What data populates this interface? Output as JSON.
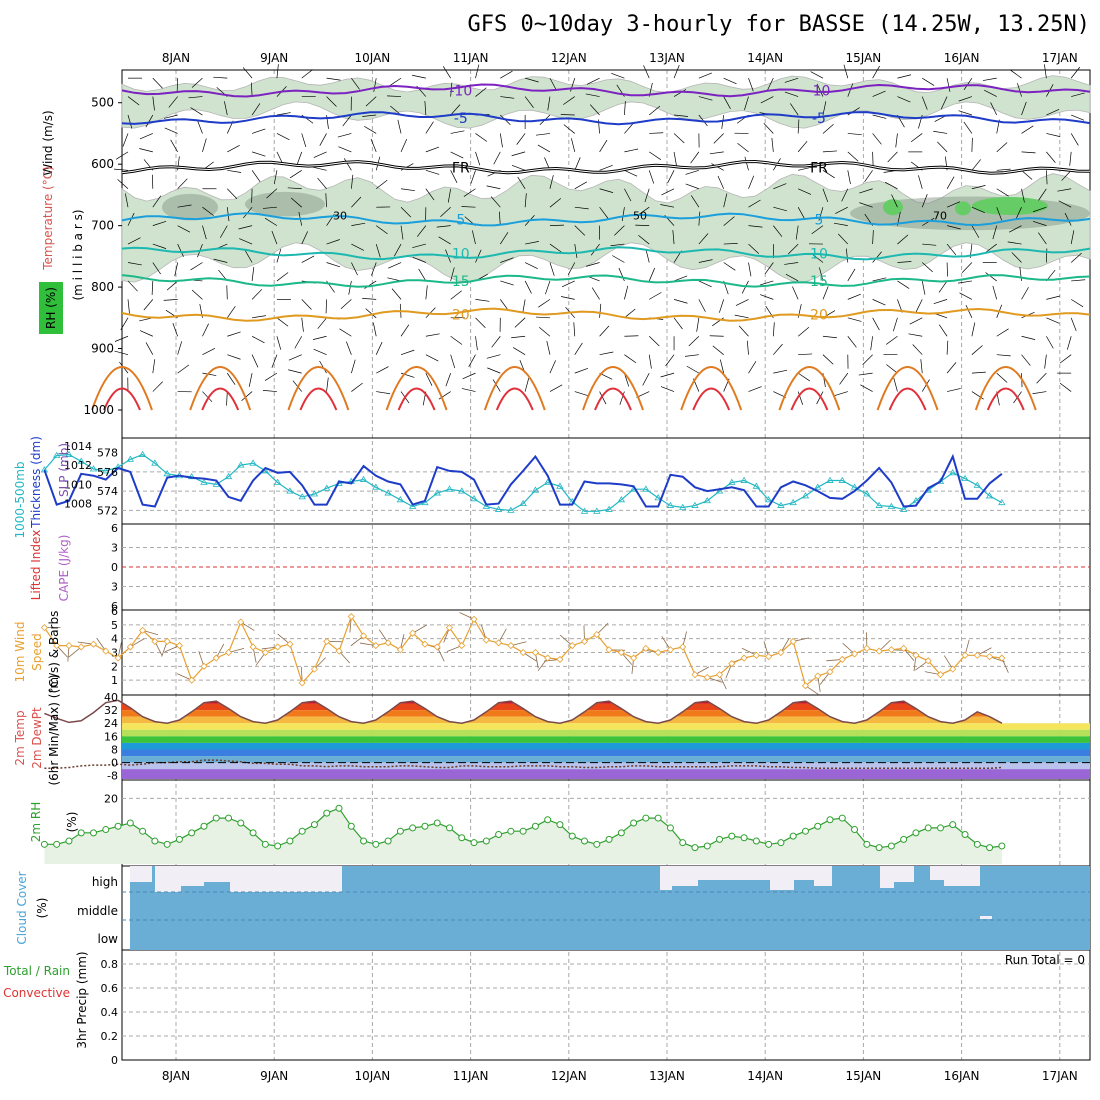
{
  "title": "GFS 0~10day 3-hourly for BASSE (14.25W, 13.25N)",
  "dates": [
    "8JAN",
    "9JAN",
    "10JAN",
    "11JAN",
    "12JAN",
    "13JAN",
    "14JAN",
    "15JAN",
    "16JAN",
    "17JAN"
  ],
  "colors": {
    "wind_barb": "#000000",
    "rh_shade": "#cfe3cf",
    "rh_dark": "#7f8f7f",
    "rh_green": "#66cc66",
    "thickness": "#1e3cc8",
    "slp": "#22b7c3",
    "lifted_index": "#dd3333",
    "wind_speed": "#e8a030",
    "cloud": "#6aaed6",
    "rh2m": "#2fa02f",
    "rh2m_fill": "#e7f2e4"
  },
  "panels": {
    "upper_air": {
      "ylabels": [
        "Wind (m/s)",
        "Temperature (°C)",
        "(m i l l i b a r s)",
        "RH (%)"
      ],
      "yticks": [
        "500",
        "600",
        "700",
        "800",
        "900",
        "1000"
      ]
    },
    "thickness_slp": {
      "ylabels": [
        "1000-500mb",
        "Thickness (dm)",
        "SLP (mb)"
      ],
      "left_ticks": [
        "578",
        "576",
        "574",
        "572"
      ],
      "right_ticks": [
        "1014",
        "1012",
        "1010",
        "1008"
      ]
    },
    "stability": {
      "ylabels": [
        "Lifted Index",
        "CAPE (J/kg)"
      ],
      "yticks": [
        "6",
        "3",
        "0",
        "3",
        "6"
      ]
    },
    "wind10m": {
      "ylabels": [
        "10m Wind",
        "Speed",
        "(m/s) & Barbs"
      ],
      "yticks": [
        "6",
        "5",
        "4",
        "3",
        "2",
        "1"
      ]
    },
    "temp2m": {
      "ylabels": [
        "2m Temp",
        "2m DewPt",
        "(6hr Min/Max) (°C)"
      ],
      "yticks": [
        "40",
        "32",
        "24",
        "16",
        "8",
        "0",
        "-8"
      ]
    },
    "rh2m": {
      "ylabels": [
        "2m RH",
        "(%)"
      ],
      "yticks": [
        "20"
      ]
    },
    "cloud": {
      "ylabels": [
        "Cloud Cover",
        "(%)"
      ],
      "levels": [
        "high",
        "middle",
        "low"
      ]
    },
    "precip": {
      "ylabels": [
        "Total / Rain",
        "Convective",
        "3hr Precip (mm)"
      ],
      "yticks": [
        "0.8",
        "0.6",
        "0.4",
        "0.2",
        "0"
      ],
      "run_total": "Run Total = 0"
    }
  },
  "chart_data": [
    {
      "type": "contour",
      "name": "upper_air_cross_section",
      "ylabel": "millibars",
      "ylim": [
        1000,
        450
      ],
      "temperature_contours_C": [
        {
          "label": "-10",
          "approx_mb": 480
        },
        {
          "label": "-5",
          "approx_mb": 525
        },
        {
          "label": "FR",
          "approx_mb": 605
        },
        {
          "label": "5",
          "approx_mb": 690
        },
        {
          "label": "10",
          "approx_mb": 745
        },
        {
          "label": "15",
          "approx_mb": 790
        },
        {
          "label": "20",
          "approx_mb": 845
        }
      ],
      "rh_contour_labels": [
        "30",
        "50",
        "70"
      ]
    },
    {
      "type": "line",
      "name": "thickness_and_slp",
      "x_days": [
        0,
        0.125,
        0.25,
        0.375,
        0.5,
        0.625,
        0.75,
        0.875,
        1,
        1.125,
        1.25,
        1.375,
        1.5,
        1.625,
        1.75,
        1.875,
        2,
        2.125,
        2.25,
        2.375,
        2.5,
        2.625,
        2.75,
        2.875,
        3,
        3.125,
        3.25,
        3.375,
        3.5,
        3.625,
        3.75,
        3.875,
        4,
        4.125,
        4.25,
        4.375,
        4.5,
        4.625,
        4.75,
        4.875,
        5,
        5.125,
        5.25,
        5.375,
        5.5,
        5.625,
        5.75,
        5.875,
        6,
        6.125,
        6.25,
        6.375,
        6.5,
        6.625,
        6.75,
        6.875,
        7,
        7.125,
        7.25,
        7.375,
        7.5,
        7.625,
        7.75,
        7.875,
        8,
        8.125,
        8.25,
        8.375,
        8.5,
        8.625,
        8.75,
        8.875,
        9,
        9.125,
        9.25,
        9.375,
        9.5,
        9.625,
        9.75
      ],
      "series": [
        {
          "name": "thickness_dm",
          "axis": "left",
          "color": "#1e3cc8",
          "values": [
            576.2,
            572.6,
            573.0,
            575.8,
            575.6,
            575.2,
            576.4,
            576.0,
            572.6,
            572.4,
            575.4,
            575.6,
            575.4,
            575.3,
            575.1,
            573.4,
            573.0,
            575.1,
            576.4,
            575.9,
            576.0,
            574.6,
            572.6,
            572.6,
            575.0,
            574.8,
            576.6,
            575.6,
            575.0,
            574.7,
            572.6,
            573.0,
            576.5,
            576.1,
            576.0,
            575.2,
            572.6,
            572.7,
            574.7,
            576.1,
            577.6,
            575.6,
            572.6,
            572.6,
            575.0,
            574.8,
            574.8,
            574.7,
            574.5,
            572.4,
            572.4,
            575.7,
            575.5,
            574.4,
            574.0,
            574.2,
            574.4,
            574.1,
            572.4,
            572.4,
            574.4,
            575.0,
            574.6,
            574.0,
            573.3,
            573.2,
            574.0,
            575.1,
            576.4,
            574.9,
            572.4,
            572.5,
            574.3,
            575.0,
            577.6,
            573.2,
            573.2,
            574.8,
            575.8
          ]
        },
        {
          "name": "slp_mb",
          "axis": "right",
          "color": "#22b7c3",
          "values": [
            1011.7,
            1013.2,
            1013.3,
            1012.6,
            1011.8,
            1011.6,
            1012.0,
            1012.8,
            1013.3,
            1012.4,
            1011.3,
            1011.1,
            1011.0,
            1010.4,
            1010.2,
            1011.0,
            1012.2,
            1012.4,
            1011.6,
            1010.4,
            1009.5,
            1008.9,
            1009.2,
            1009.8,
            1010.3,
            1010.5,
            1010.7,
            1009.9,
            1009.3,
            1008.6,
            1007.9,
            1008.3,
            1009.3,
            1009.7,
            1009.5,
            1008.7,
            1007.9,
            1007.6,
            1007.5,
            1008.2,
            1009.6,
            1010.4,
            1010.0,
            1008.4,
            1007.4,
            1007.4,
            1007.6,
            1008.6,
            1009.7,
            1009.7,
            1008.8,
            1008.0,
            1007.8,
            1008.0,
            1008.5,
            1009.5,
            1010.4,
            1010.6,
            1010.0,
            1008.6,
            1008.0,
            1008.3,
            1009.0,
            1009.9,
            1010.6,
            1010.6,
            1009.9,
            1009.2,
            1008.0,
            1007.9,
            1007.6,
            1008.5,
            1009.6,
            1010.5,
            1011.4,
            1010.8,
            1010.1,
            1009.0,
            1008.3
          ]
        }
      ]
    },
    {
      "type": "line",
      "name": "lifted_index_cape",
      "ylim": [
        -6,
        6
      ],
      "series": [
        {
          "name": "lifted_index_zero_line",
          "values": [
            0
          ]
        }
      ]
    },
    {
      "type": "line",
      "name": "wind_speed_10m",
      "ylabel": "(m/s)",
      "ylim": [
        0,
        6
      ],
      "series": [
        {
          "name": "speed_ms",
          "color": "#e8a030",
          "values": [
            4.8,
            3.5,
            3.5,
            3.4,
            3.6,
            3.1,
            2.6,
            3.4,
            4.6,
            3.8,
            3.8,
            3.5,
            1.0,
            2.0,
            2.6,
            3.0,
            5.2,
            3.4,
            3.0,
            3.4,
            3.6,
            0.8,
            1.8,
            3.8,
            3.1,
            5.6,
            4.2,
            3.5,
            3.7,
            3.2,
            4.4,
            3.6,
            3.4,
            4.8,
            3.5,
            5.4,
            3.9,
            3.7,
            3.5,
            3.0,
            3.0,
            2.6,
            2.5,
            3.5,
            3.8,
            4.3,
            3.2,
            3.0,
            2.6,
            3.3,
            3.0,
            3.2,
            3.4,
            1.4,
            1.2,
            1.4,
            2.2,
            2.6,
            2.8,
            2.7,
            3.0,
            3.8,
            0.6,
            1.3,
            1.6,
            2.5,
            2.9,
            3.3,
            3.1,
            3.2,
            3.3,
            2.8,
            2.4,
            1.4,
            1.8,
            2.8,
            2.8,
            2.7,
            2.6
          ]
        }
      ]
    },
    {
      "type": "area",
      "name": "temp_dewpoint_2m",
      "ylabel": "(°C)",
      "ylim": [
        -10,
        40
      ],
      "series": [
        {
          "name": "temperature_C",
          "values": [
            30.0,
            27.0,
            24.5,
            25.5,
            30.5,
            36.5,
            38.0,
            33.5,
            28.0,
            25.0,
            24.0,
            26.0,
            31.0,
            36.5,
            37.5,
            33.0,
            28.0,
            25.0,
            24.0,
            26.0,
            31.0,
            36.5,
            37.5,
            33.0,
            28.0,
            25.0,
            24.0,
            26.0,
            31.0,
            36.5,
            37.5,
            33.0,
            28.0,
            25.0,
            24.0,
            26.0,
            31.0,
            36.5,
            37.5,
            33.0,
            28.0,
            25.0,
            24.0,
            26.0,
            31.0,
            36.5,
            37.5,
            33.0,
            28.0,
            25.0,
            24.0,
            26.0,
            31.0,
            36.5,
            37.5,
            33.0,
            28.0,
            25.0,
            24.0,
            26.0,
            31.0,
            36.5,
            37.5,
            33.0,
            28.0,
            25.0,
            24.0,
            26.0,
            31.0,
            36.5,
            37.5,
            33.0,
            28.0,
            25.0,
            24.0,
            26.0,
            31.0,
            28.0,
            24.0
          ]
        },
        {
          "name": "dewpoint_C",
          "values": [
            -3.5,
            -3.5,
            -3.0,
            -2.0,
            -1.5,
            -1.5,
            -1.0,
            -1.5,
            -1.0,
            0.0,
            0.0,
            0.5,
            0.5,
            1.5,
            1.5,
            1.0,
            0.5,
            -0.5,
            -0.5,
            -1.0,
            -1.0,
            -2.0,
            -2.0,
            -2.5,
            -2.0,
            -2.0,
            -2.5,
            -2.5,
            -2.5,
            -2.0,
            -2.0,
            -2.5,
            -3.0,
            -3.0,
            -2.0,
            -2.0,
            -2.5,
            -2.5,
            -2.5,
            -2.0,
            -2.0,
            -2.0,
            -2.5,
            -2.5,
            -3.0,
            -3.0,
            -2.5,
            -2.5,
            -2.0,
            -2.0,
            -2.5,
            -2.5,
            -2.5,
            -2.5,
            -2.5,
            -2.5,
            -2.0,
            -2.0,
            -2.0,
            -2.5,
            -2.5,
            -3.0,
            -3.0,
            -3.5,
            -3.5,
            -3.5,
            -3.5,
            -3.5,
            -3.5,
            -3.5,
            -3.5,
            -3.5,
            -3.5,
            -3.5,
            -3.5,
            -3.5,
            -3.5,
            -3.5,
            -3.0
          ]
        }
      ]
    },
    {
      "type": "line",
      "name": "rh_2m",
      "ylabel": "(%)",
      "ylim": [
        0,
        25
      ],
      "series": [
        {
          "name": "rh_percent",
          "color": "#2fa02f",
          "values": [
            6.0,
            6.0,
            7.0,
            9.5,
            9.5,
            10.5,
            11.5,
            12.5,
            10.0,
            7.0,
            6.0,
            7.5,
            9.5,
            11.5,
            14.0,
            14.0,
            12.5,
            9.5,
            6.0,
            5.5,
            7.0,
            10.0,
            12.0,
            15.5,
            17.0,
            11.5,
            7.0,
            6.0,
            7.0,
            10.0,
            11.0,
            11.5,
            12.5,
            11.0,
            8.0,
            6.5,
            7.0,
            9.0,
            10.0,
            10.0,
            11.5,
            13.5,
            12.0,
            8.5,
            7.0,
            6.0,
            7.5,
            9.5,
            12.5,
            14.0,
            14.0,
            11.0,
            6.5,
            5.0,
            5.5,
            7.5,
            8.5,
            8.0,
            7.0,
            6.0,
            6.5,
            8.5,
            10.0,
            11.5,
            13.5,
            14.0,
            10.5,
            6.0,
            5.0,
            5.5,
            7.5,
            9.5,
            11.0,
            11.0,
            12.0,
            9.0,
            6.0,
            5.0,
            5.5
          ]
        }
      ]
    },
    {
      "type": "bar",
      "name": "cloud_cover",
      "ylabel": "(%)",
      "categories": [
        "high",
        "middle",
        "low"
      ],
      "series": [
        {
          "name": "cloud_levels",
          "values": [
            1,
            1,
            1
          ]
        }
      ]
    },
    {
      "type": "bar",
      "name": "precip_3hr",
      "ylabel": "3hr Precip (mm)",
      "ylim": [
        0,
        1
      ],
      "series": [
        {
          "name": "total_rain_convective",
          "values": [
            0
          ]
        }
      ]
    }
  ]
}
